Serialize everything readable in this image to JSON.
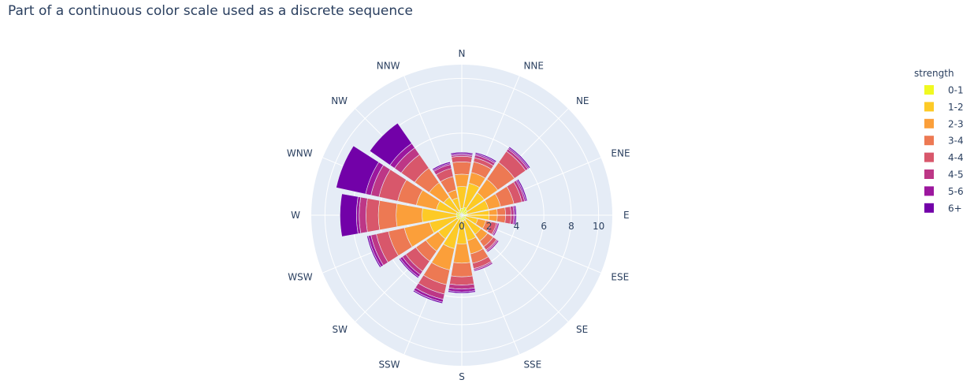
{
  "chart_data": {
    "type": "barpolar",
    "title": "Part of a continuous color scale used as a discrete sequence",
    "angular_axis": {
      "direction": "clockwise",
      "rotation": "north-up",
      "categories": [
        "N",
        "NNE",
        "NE",
        "ENE",
        "E",
        "ESE",
        "SE",
        "SSE",
        "S",
        "SSW",
        "SW",
        "WSW",
        "W",
        "WNW",
        "NW",
        "NNW"
      ]
    },
    "radial_axis": {
      "range": [
        0,
        11
      ],
      "ticks": [
        "0",
        "2",
        "4",
        "6",
        "8",
        "10"
      ],
      "angle_deg": 0
    },
    "legend": {
      "title": "strength",
      "position": "top-right"
    },
    "categories": [
      "N",
      "NNE",
      "NE",
      "ENE",
      "E",
      "ESE",
      "SE",
      "SSE",
      "S",
      "SSW",
      "SW",
      "WSW",
      "W",
      "WNW",
      "NW",
      "NNW"
    ],
    "series": [
      {
        "name": "0-1",
        "color": "#f0f921",
        "values": [
          0.5,
          0.6,
          0.5,
          0.4,
          0.4,
          0.3,
          0.4,
          0.4,
          0.4,
          0.3,
          0.4,
          0.4,
          0.4,
          0.4,
          0.3,
          0.4
        ]
      },
      {
        "name": "1-2",
        "color": "#fdca26",
        "values": [
          1.6,
          1.8,
          1.5,
          1.6,
          1.6,
          0.9,
          1.3,
          1.5,
          1.7,
          2.2,
          1.7,
          2.0,
          2.5,
          1.5,
          1.3,
          0.9
        ]
      },
      {
        "name": "2-3",
        "color": "#fb9f3a",
        "values": [
          0.9,
          0.8,
          1.2,
          0.9,
          0.6,
          0.6,
          0.6,
          1.0,
          1.4,
          1.6,
          1.1,
          1.9,
          1.9,
          1.5,
          1.3,
          0.6
        ]
      },
      {
        "name": "3-4",
        "color": "#ed7953",
        "values": [
          0.9,
          0.8,
          1.5,
          1.0,
          0.6,
          0.4,
          0.5,
          0.7,
          1.0,
          1.1,
          0.9,
          1.2,
          1.3,
          1.4,
          1.3,
          1.0
        ]
      },
      {
        "name": "4-4",
        "color": "#d8576b",
        "values": [
          0.4,
          0.3,
          1.0,
          0.6,
          0.4,
          0.4,
          0.3,
          0.4,
          0.6,
          0.7,
          0.9,
          0.9,
          0.9,
          1.4,
          1.2,
          0.6
        ]
      },
      {
        "name": "4-5",
        "color": "#bd3786",
        "values": [
          0.1,
          0.2,
          0.2,
          0.2,
          0.2,
          0.1,
          0.1,
          0.1,
          0.3,
          0.4,
          0.3,
          0.4,
          0.5,
          0.6,
          0.6,
          0.3
        ]
      },
      {
        "name": "5-6",
        "color": "#9c179e",
        "values": [
          0.1,
          0.1,
          0.1,
          0.1,
          0.1,
          0.1,
          0.1,
          0.1,
          0.2,
          0.2,
          0.2,
          0.2,
          0.2,
          0.4,
          0.4,
          0.1
        ]
      },
      {
        "name": "6+",
        "color": "#7201a8",
        "values": [
          0.1,
          0.1,
          0.1,
          0.1,
          0.1,
          0.0,
          0.0,
          0.0,
          0.1,
          0.1,
          0.1,
          0.1,
          1.2,
          2.2,
          1.8,
          0.1
        ]
      }
    ]
  }
}
